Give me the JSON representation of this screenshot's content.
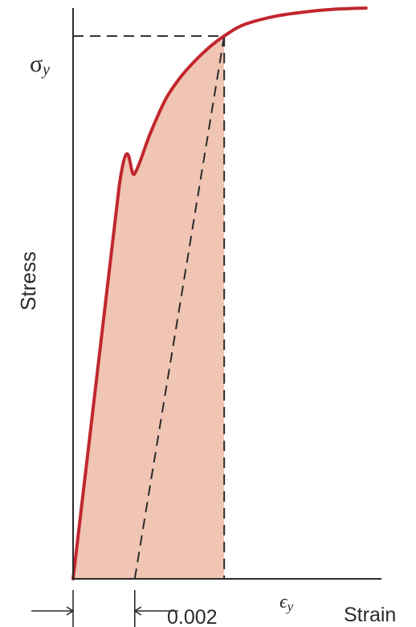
{
  "chart_data": {
    "type": "line",
    "title": "",
    "xlabel": "Strain",
    "ylabel": "Stress",
    "grid": false,
    "legend": "none",
    "x_range": [
      0,
      0.01
    ],
    "y_range": [
      0,
      1.0
    ],
    "series": [
      {
        "name": "",
        "kind": "stress-strain curve",
        "x": [
          0,
          0.0015,
          0.002,
          0.0025,
          0.003,
          0.0035,
          0.004,
          0.0045,
          0.0049,
          0.0055,
          0.0065,
          0.0075,
          0.0085,
          0.0095
        ],
        "y": [
          0,
          0.69,
          0.71,
          0.78,
          0.84,
          0.88,
          0.91,
          0.935,
          0.951,
          0.97,
          0.985,
          0.993,
          0.998,
          1.0
        ]
      },
      {
        "name": "",
        "kind": "offset line (0.002 strain)",
        "x": [
          0.002,
          0.0049
        ],
        "y": [
          0,
          0.951
        ]
      }
    ],
    "shaded_area": {
      "under": "stress-strain curve",
      "from_x": 0,
      "to_x": 0.0049,
      "color": "#f0c5b4"
    },
    "markers": {
      "yield_stress_label": "σ",
      "yield_stress_sub": "y",
      "yield_strain_label": "ϵ",
      "yield_strain_sub": "y",
      "offset_label": "0.002",
      "yield_point": [
        0.0049,
        0.951
      ]
    },
    "colors": {
      "curve": "#c1272d",
      "fill": "#f0c5b4",
      "axis": "#2b2b2b",
      "dashed": "#2b2b2b"
    }
  }
}
